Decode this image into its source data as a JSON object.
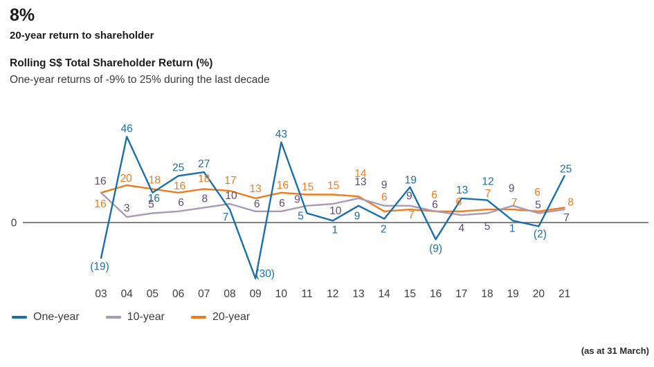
{
  "header": {
    "headline": "8%",
    "caption": "20-year return to shareholder",
    "chart_title": "Rolling S$ Total Shareholder Return (%)",
    "chart_subtitle": "One-year returns of -9% to 25% during the last decade"
  },
  "footnote": "(as at 31 March)",
  "axis": {
    "zero_label": "0"
  },
  "colors": {
    "axis_line": "#58595b",
    "tick_text": "#3d3d3d"
  },
  "chart_data": {
    "type": "line",
    "title": "Rolling S$ Total Shareholder Return (%)",
    "subtitle": "One-year returns of -9% to 25% during the last decade",
    "categories": [
      "03",
      "04",
      "05",
      "06",
      "07",
      "08",
      "09",
      "10",
      "11",
      "12",
      "13",
      "14",
      "15",
      "16",
      "17",
      "18",
      "19",
      "20",
      "21"
    ],
    "ylim": [
      -33,
      50
    ],
    "grid": false,
    "legend_position": "bottom-left",
    "baseline_value": 0,
    "baseline_label": "0",
    "negative_format": "parentheses",
    "series": [
      {
        "name": "One-year",
        "color": "#1b6fa9",
        "label_color": "#1b6fa9",
        "z": 3,
        "values": [
          -19,
          46,
          16,
          25,
          27,
          7,
          -30,
          43,
          5,
          1,
          9,
          2,
          19,
          -9,
          13,
          12,
          1,
          -2,
          25
        ],
        "label_offsets": [
          [
            -2,
            17
          ],
          [
            0,
            -7
          ],
          [
            2,
            13
          ],
          [
            0,
            -7
          ],
          [
            0,
            -7
          ],
          [
            -6,
            16
          ],
          [
            14,
            -2
          ],
          [
            0,
            -7
          ],
          [
            -9,
            9
          ],
          [
            3,
            18
          ],
          [
            -2,
            20
          ],
          [
            -1,
            20
          ],
          [
            1,
            -5
          ],
          [
            0,
            18
          ],
          [
            1,
            -7
          ],
          [
            1,
            -22
          ],
          [
            -1,
            16
          ],
          [
            2,
            16
          ],
          [
            2,
            -5
          ]
        ]
      },
      {
        "name": "10-year",
        "color": "#a99bb5",
        "label_color": "#5f4b72",
        "z": 2,
        "values": [
          16,
          3,
          5,
          6,
          8,
          10,
          6,
          6,
          9,
          10,
          13,
          9,
          9,
          6,
          4,
          5,
          9,
          5,
          7
        ],
        "label_offsets": [
          [
            -1,
            -12
          ],
          [
            0,
            -8
          ],
          [
            -2,
            -8
          ],
          [
            4,
            -8
          ],
          [
            1,
            -8
          ],
          [
            2,
            -7
          ],
          [
            2,
            -6
          ],
          [
            1,
            -7
          ],
          [
            -14,
            -4
          ],
          [
            4,
            15
          ],
          [
            3,
            -19
          ],
          [
            0,
            -25
          ],
          [
            -1,
            -9
          ],
          [
            -1,
            -5
          ],
          [
            0,
            24
          ],
          [
            0,
            24
          ],
          [
            -2,
            -20
          ],
          [
            -1,
            -7
          ],
          [
            3,
            17
          ]
        ]
      },
      {
        "name": "20-year",
        "color": "#ed7c1f",
        "label_color": "#ed7c1f",
        "z": 1,
        "values": [
          16,
          20,
          18,
          16,
          18,
          17,
          13,
          16,
          15,
          15,
          14,
          6,
          7,
          6,
          6,
          7,
          7,
          6,
          8
        ],
        "label_offsets": [
          [
            -1,
            21
          ],
          [
            -1,
            -5
          ],
          [
            3,
            -8
          ],
          [
            2,
            -5
          ],
          [
            0,
            -10
          ],
          [
            1,
            -10
          ],
          [
            0,
            -9
          ],
          [
            2,
            -6
          ],
          [
            1,
            -6
          ],
          [
            1,
            -8
          ],
          [
            3,
            -28
          ],
          [
            0,
            -16
          ],
          [
            2,
            13
          ],
          [
            -2,
            -19
          ],
          [
            -4,
            -9
          ],
          [
            1,
            -18
          ],
          [
            2,
            -5
          ],
          [
            -2,
            -23
          ],
          [
            9,
            -3
          ]
        ]
      }
    ]
  },
  "legend": {
    "items": [
      {
        "label": "One-year"
      },
      {
        "label": "10-year"
      },
      {
        "label": "20-year"
      }
    ]
  }
}
